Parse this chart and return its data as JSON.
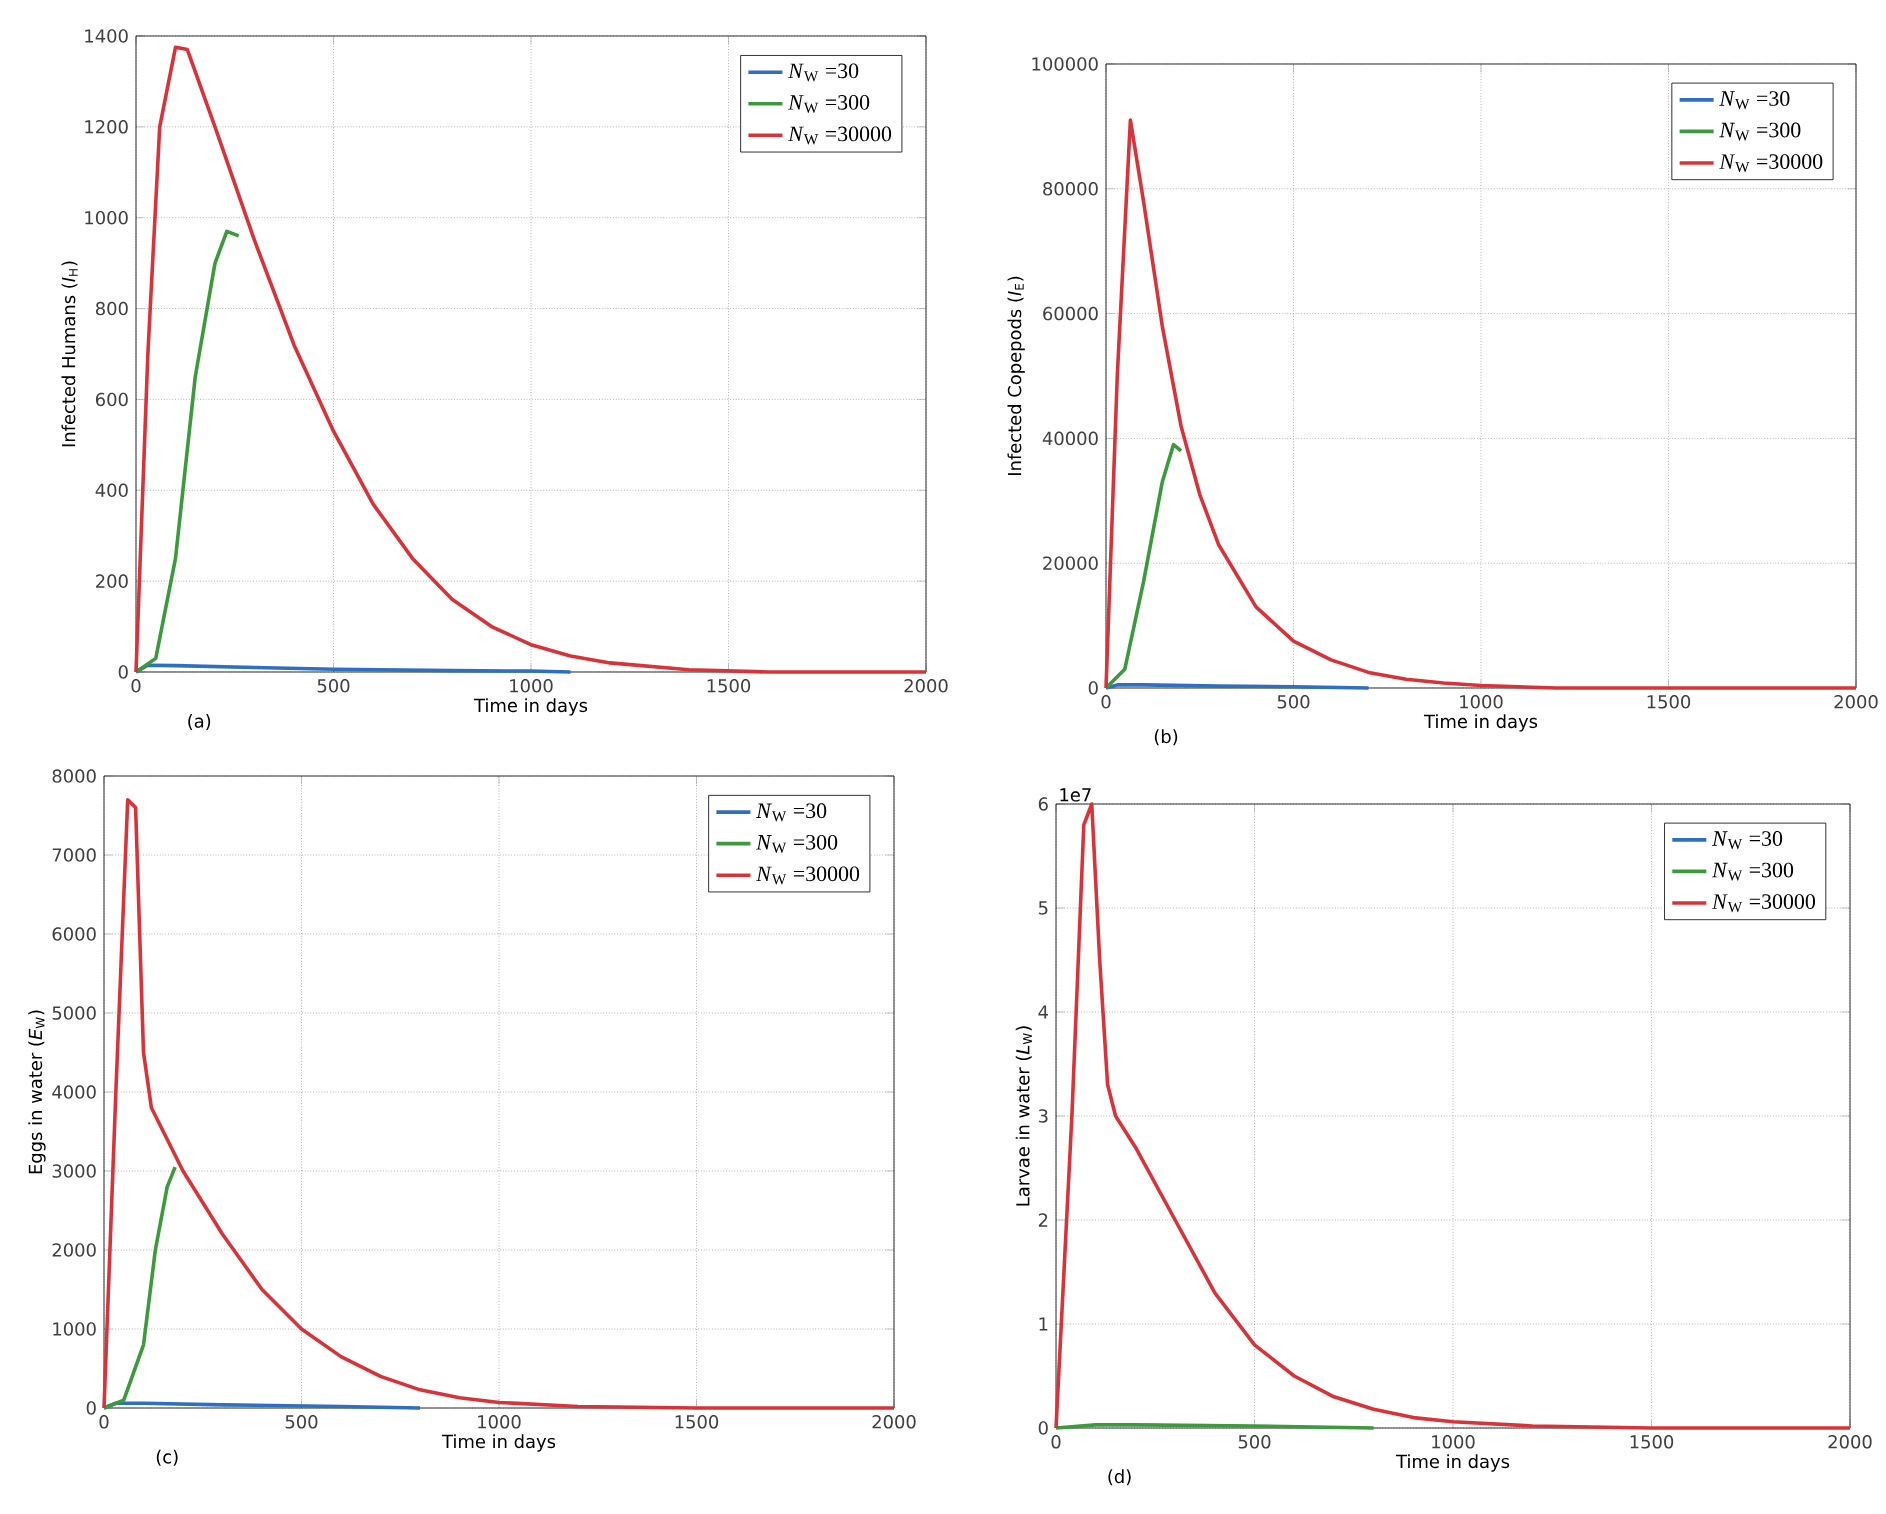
{
  "chart_data": [
    {
      "type": "line",
      "xlabel": "Time in days",
      "ylabel": "Infected Humans (*I*$_{H}$)",
      "xlim": [
        0,
        2000
      ],
      "ylim": [
        0,
        1400
      ],
      "xticks": [
        0,
        500,
        1000,
        1500,
        2000
      ],
      "yticks": [
        0,
        200,
        400,
        600,
        800,
        1000,
        1200,
        1400
      ],
      "grid": true,
      "legend": "top right",
      "annotations": [
        "(a)"
      ],
      "series": [
        {
          "name": "*N*$_{W}$ =30",
          "color": "#2f6fbf",
          "x": [
            0,
            30,
            100,
            300,
            500,
            800,
            1000,
            1100
          ],
          "values": [
            0,
            15,
            14,
            10,
            6,
            3,
            2,
            0
          ]
        },
        {
          "name": "*N*$_{W}$ =300",
          "color": "#3c9a3c",
          "x": [
            0,
            50,
            100,
            150,
            200,
            230,
            260
          ],
          "values": [
            0,
            30,
            250,
            650,
            900,
            970,
            960
          ]
        },
        {
          "name": "*N*$_{W}$ =30000",
          "color": "#d9333a",
          "x": [
            0,
            30,
            60,
            100,
            130,
            200,
            300,
            400,
            500,
            600,
            700,
            800,
            900,
            1000,
            1100,
            1200,
            1400,
            1600,
            2000
          ],
          "values": [
            0,
            700,
            1200,
            1375,
            1370,
            1200,
            950,
            720,
            530,
            370,
            250,
            160,
            100,
            60,
            35,
            20,
            5,
            0,
            0
          ]
        }
      ]
    },
    {
      "type": "line",
      "xlabel": "Time in days",
      "ylabel": "Infected Copepods (*I*$_{E}$)",
      "xlim": [
        0,
        2000
      ],
      "ylim": [
        0,
        100000
      ],
      "xticks": [
        0,
        500,
        1000,
        1500,
        2000
      ],
      "yticks": [
        0,
        20000,
        40000,
        60000,
        80000,
        100000
      ],
      "grid": true,
      "legend": "top right",
      "annotations": [
        "(b)"
      ],
      "series": [
        {
          "name": "*N*$_{W}$ =30",
          "color": "#2f6fbf",
          "x": [
            0,
            30,
            100,
            300,
            500,
            700
          ],
          "values": [
            0,
            500,
            500,
            300,
            200,
            0
          ]
        },
        {
          "name": "*N*$_{W}$ =300",
          "color": "#3c9a3c",
          "x": [
            0,
            50,
            100,
            150,
            180,
            200
          ],
          "values": [
            0,
            3000,
            17000,
            33000,
            39000,
            38000
          ]
        },
        {
          "name": "*N*$_{W}$ =30000",
          "color": "#d9333a",
          "x": [
            0,
            30,
            65,
            100,
            150,
            200,
            250,
            300,
            400,
            500,
            600,
            700,
            800,
            900,
            1000,
            1200,
            1500,
            2000
          ],
          "values": [
            0,
            50000,
            91000,
            78000,
            58000,
            42000,
            31000,
            23000,
            13000,
            7500,
            4500,
            2500,
            1400,
            800,
            400,
            0,
            0,
            0
          ]
        }
      ]
    },
    {
      "type": "line",
      "xlabel": "Time in days",
      "ylabel": "Eggs in water (*E*$_{W}$)",
      "xlim": [
        0,
        2000
      ],
      "ylim": [
        0,
        8000
      ],
      "xticks": [
        0,
        500,
        1000,
        1500,
        2000
      ],
      "yticks": [
        0,
        1000,
        2000,
        3000,
        4000,
        5000,
        6000,
        7000,
        8000
      ],
      "grid": true,
      "legend": "top right",
      "annotations": [
        "(c)"
      ],
      "series": [
        {
          "name": "*N*$_{W}$ =30",
          "color": "#2f6fbf",
          "x": [
            0,
            30,
            100,
            300,
            600,
            800
          ],
          "values": [
            0,
            60,
            60,
            40,
            20,
            0
          ]
        },
        {
          "name": "*N*$_{W}$ =300",
          "color": "#3c9a3c",
          "x": [
            0,
            50,
            100,
            130,
            160,
            180
          ],
          "values": [
            0,
            100,
            800,
            2000,
            2800,
            3050
          ]
        },
        {
          "name": "*N*$_{W}$ =30000",
          "color": "#d9333a",
          "x": [
            0,
            30,
            60,
            80,
            100,
            120,
            150,
            200,
            300,
            400,
            500,
            600,
            700,
            800,
            900,
            1000,
            1200,
            1500,
            2000
          ],
          "values": [
            0,
            4000,
            7700,
            7600,
            4500,
            3800,
            3500,
            3000,
            2200,
            1500,
            1000,
            650,
            400,
            230,
            130,
            70,
            20,
            0,
            0
          ]
        }
      ]
    },
    {
      "type": "line",
      "xlabel": "Time in days",
      "ylabel": "Larvae in water (*L*$_{W}$)",
      "xlim": [
        0,
        2000
      ],
      "ylim": [
        0,
        6
      ],
      "xticks": [
        0,
        500,
        1000,
        1500,
        2000
      ],
      "yticks": [
        0,
        1,
        2,
        3,
        4,
        5,
        6
      ],
      "grid": true,
      "legend": "top right",
      "annotations": [
        "(d)",
        "1e7"
      ],
      "series": [
        {
          "name": "*N*$_{W}$ =30",
          "color": "#2f6fbf"
        },
        {
          "name": "*N*$_{W}$ =300",
          "color": "#3c9a3c",
          "x": [
            0,
            100,
            200,
            500,
            800
          ],
          "values": [
            0,
            0.03,
            0.03,
            0.02,
            0
          ]
        },
        {
          "name": "*N*$_{W}$ =30000",
          "color": "#d9333a",
          "x": [
            0,
            40,
            70,
            90,
            110,
            130,
            150,
            200,
            300,
            400,
            500,
            600,
            700,
            800,
            900,
            1000,
            1200,
            1500,
            2000
          ],
          "values": [
            0,
            3,
            5.8,
            6,
            4.5,
            3.3,
            3,
            2.7,
            2,
            1.3,
            0.8,
            0.5,
            0.3,
            0.18,
            0.1,
            0.06,
            0.02,
            0,
            0
          ]
        }
      ]
    }
  ]
}
